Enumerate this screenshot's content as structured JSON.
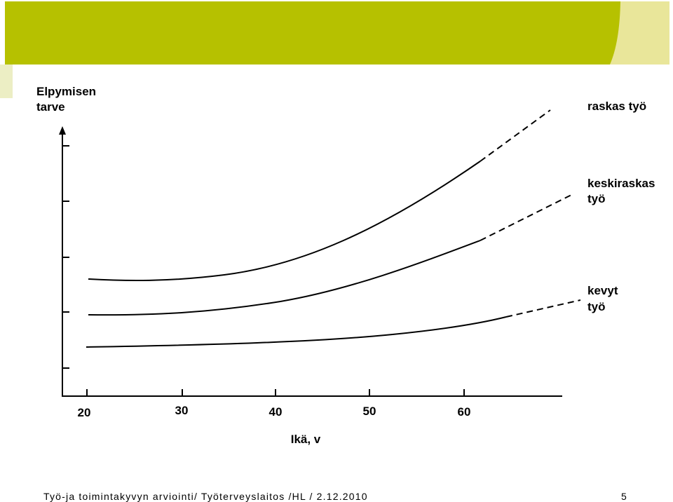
{
  "slide": {
    "y_label": [
      "Elpymisen",
      "tarve"
    ],
    "curve_labels": [
      [
        "raskas työ"
      ],
      [
        "keskiraskas",
        "työ"
      ],
      [
        "kevyt",
        "työ"
      ]
    ],
    "x_ticks": [
      "20",
      "30",
      "40",
      "50",
      "60"
    ],
    "x_label": "Ikä, v",
    "footer": "Työ-ja toimintakyvyn arviointi/ Työterveyslaitos /HL / 2.12.2010",
    "page_number": "5"
  }
}
